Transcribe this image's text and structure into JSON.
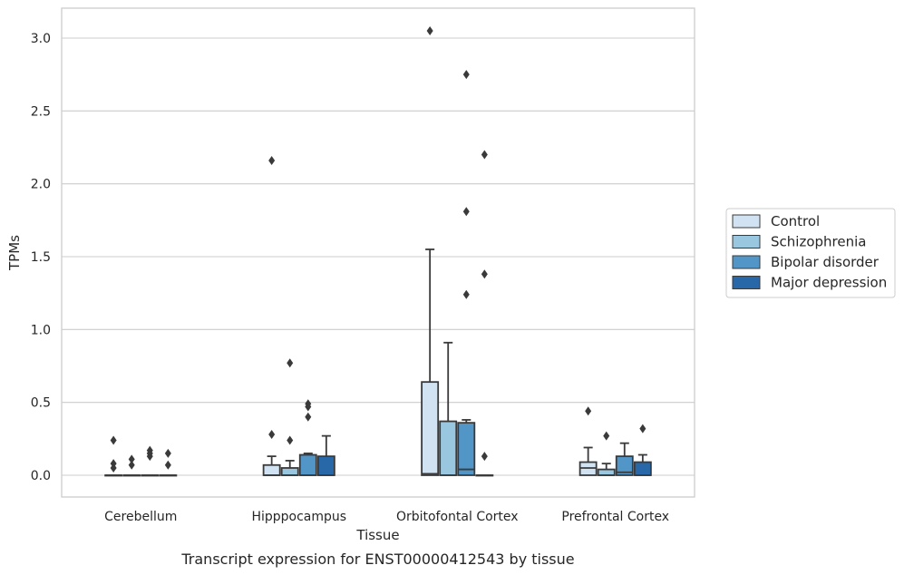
{
  "chart_data": {
    "type": "box",
    "caption": "Transcript expression for ENST00000412543 by tissue",
    "xlabel": "Tissue",
    "ylabel": "TPMs",
    "ylim": [
      -0.15,
      3.2
    ],
    "yticks": [
      "0.0",
      "0.5",
      "1.0",
      "1.5",
      "2.0",
      "2.5",
      "3.0"
    ],
    "grid": "horizontal",
    "legend_position": "right",
    "categories": [
      "Cerebellum",
      "Hipppocampus",
      "Orbitofontal Cortex",
      "Prefrontal Cortex"
    ],
    "series": [
      {
        "name": "Control",
        "color": "#d1e2f2",
        "boxes": [
          {
            "q1": 0,
            "median": 0,
            "q3": 0,
            "whisker_low": 0,
            "whisker_high": 0,
            "outliers": [
              0.24,
              0.08,
              0.05
            ]
          },
          {
            "q1": 0,
            "median": 0,
            "q3": 0.07,
            "whisker_low": 0,
            "whisker_high": 0.13,
            "outliers": [
              0.28,
              2.16
            ]
          },
          {
            "q1": 0,
            "median": 0.01,
            "q3": 0.64,
            "whisker_low": 0,
            "whisker_high": 1.55,
            "outliers": [
              3.05
            ]
          },
          {
            "q1": 0,
            "median": 0.05,
            "q3": 0.09,
            "whisker_low": 0,
            "whisker_high": 0.19,
            "outliers": [
              0.44
            ]
          }
        ]
      },
      {
        "name": "Schizophrenia",
        "color": "#9ac7e0",
        "boxes": [
          {
            "q1": 0,
            "median": 0,
            "q3": 0,
            "whisker_low": 0,
            "whisker_high": 0,
            "outliers": [
              0.11,
              0.07
            ]
          },
          {
            "q1": 0,
            "median": 0,
            "q3": 0.05,
            "whisker_low": 0,
            "whisker_high": 0.1,
            "outliers": [
              0.24,
              0.77
            ]
          },
          {
            "q1": 0,
            "median": 0,
            "q3": 0.37,
            "whisker_low": 0,
            "whisker_high": 0.91,
            "outliers": []
          },
          {
            "q1": 0,
            "median": 0,
            "q3": 0.04,
            "whisker_low": 0,
            "whisker_high": 0.08,
            "outliers": [
              0.27
            ]
          }
        ]
      },
      {
        "name": "Bipolar disorder",
        "color": "#5296c8",
        "boxes": [
          {
            "q1": 0,
            "median": 0,
            "q3": 0,
            "whisker_low": 0,
            "whisker_high": 0,
            "outliers": [
              0.17,
              0.15,
              0.13
            ]
          },
          {
            "q1": 0,
            "median": 0,
            "q3": 0.14,
            "whisker_low": 0,
            "whisker_high": 0.15,
            "outliers": [
              0.4,
              0.47,
              0.49
            ]
          },
          {
            "q1": 0,
            "median": 0.04,
            "q3": 0.36,
            "whisker_low": 0,
            "whisker_high": 0.38,
            "outliers": [
              1.24,
              1.81,
              2.75
            ]
          },
          {
            "q1": 0,
            "median": 0.02,
            "q3": 0.13,
            "whisker_low": 0,
            "whisker_high": 0.22,
            "outliers": []
          }
        ]
      },
      {
        "name": "Major depression",
        "color": "#2868a9",
        "boxes": [
          {
            "q1": 0,
            "median": 0,
            "q3": 0,
            "whisker_low": 0,
            "whisker_high": 0,
            "outliers": [
              0.15,
              0.07
            ]
          },
          {
            "q1": 0,
            "median": 0,
            "q3": 0.13,
            "whisker_low": 0,
            "whisker_high": 0.27,
            "outliers": []
          },
          {
            "q1": 0,
            "median": 0,
            "q3": 0,
            "whisker_low": 0,
            "whisker_high": 0,
            "outliers": [
              0.13,
              1.38,
              2.2
            ]
          },
          {
            "q1": 0,
            "median": 0,
            "q3": 0.09,
            "whisker_low": 0,
            "whisker_high": 0.14,
            "outliers": [
              0.32
            ]
          }
        ]
      }
    ]
  }
}
